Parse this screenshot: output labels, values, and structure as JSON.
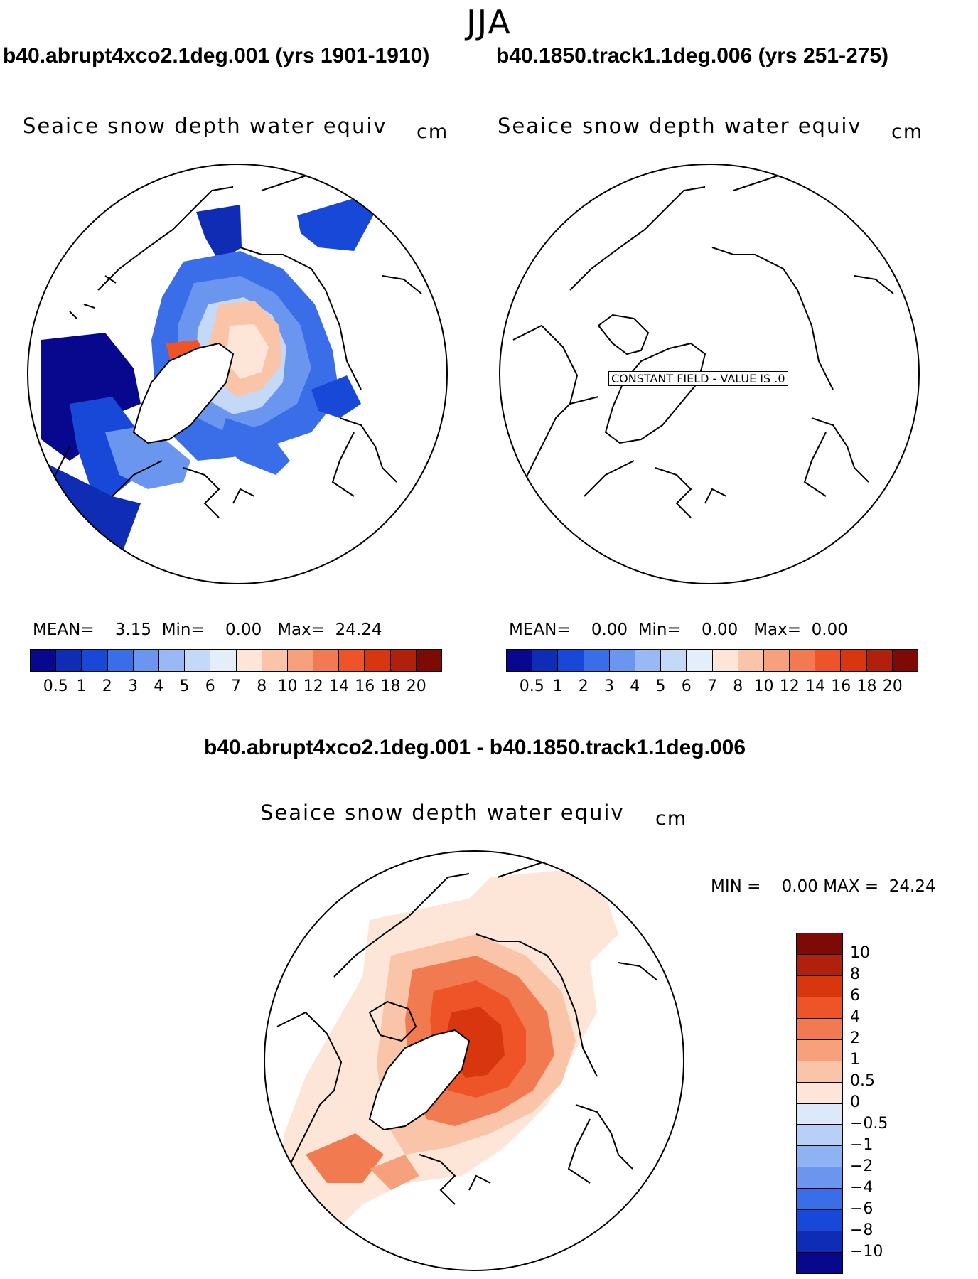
{
  "season": "JJA",
  "panels": [
    {
      "id": "left",
      "run_title": "b40.abrupt4xco2.1deg.001 (yrs 1901-1910)",
      "variable": "Seaice snow depth water equiv",
      "units": "cm",
      "stats": {
        "mean_label": "MEAN=",
        "mean": "3.15",
        "min_label": "Min=",
        "min": "0.00",
        "max_label": "Max=",
        "max": "24.24"
      },
      "constant_field_note": ""
    },
    {
      "id": "right",
      "run_title": "b40.1850.track1.1deg.006 (yrs 251-275)",
      "variable": "Seaice snow depth water equiv",
      "units": "cm",
      "stats": {
        "mean_label": "MEAN=",
        "mean": "0.00",
        "min_label": "Min=",
        "min": "0.00",
        "max_label": "Max=",
        "max": "0.00"
      },
      "constant_field_note": "CONSTANT FIELD - VALUE IS .0"
    }
  ],
  "abs_colorbar": {
    "labels": [
      "0.5",
      "1",
      "2",
      "3",
      "4",
      "5",
      "6",
      "7",
      "8",
      "10",
      "12",
      "14",
      "16",
      "18",
      "20"
    ],
    "colors": [
      "#08088f",
      "#0f2cb4",
      "#1848d8",
      "#3a6ee8",
      "#6a96f0",
      "#9ab8f4",
      "#c4d8f8",
      "#e4eefb",
      "#fde6d8",
      "#f9c4a8",
      "#f6a07c",
      "#f27a50",
      "#ee5428",
      "#d8360f",
      "#b0200b",
      "#7e0a06"
    ]
  },
  "diff": {
    "title": "b40.abrupt4xco2.1deg.001 - b40.1850.track1.1deg.006",
    "variable": "Seaice snow depth water equiv",
    "units": "cm",
    "stats": {
      "min_label": "MIN =",
      "min": "0.00",
      "max_label": "MAX =",
      "max": "24.24"
    },
    "colorbar": {
      "labels": [
        "10",
        "8",
        "6",
        "4",
        "2",
        "1",
        "0.5",
        "0",
        "−0.5",
        "−1",
        "−2",
        "−4",
        "−6",
        "−8",
        "−10"
      ],
      "colors": [
        "#7e0a06",
        "#b0200b",
        "#d8360f",
        "#ee5428",
        "#f27a50",
        "#f6a07c",
        "#f9c4a8",
        "#fde6d8",
        "#dbe9fb",
        "#b8cff7",
        "#8fb2f2",
        "#6a96f0",
        "#3a6ee8",
        "#1848d8",
        "#0f2cb4",
        "#08088f"
      ]
    }
  }
}
